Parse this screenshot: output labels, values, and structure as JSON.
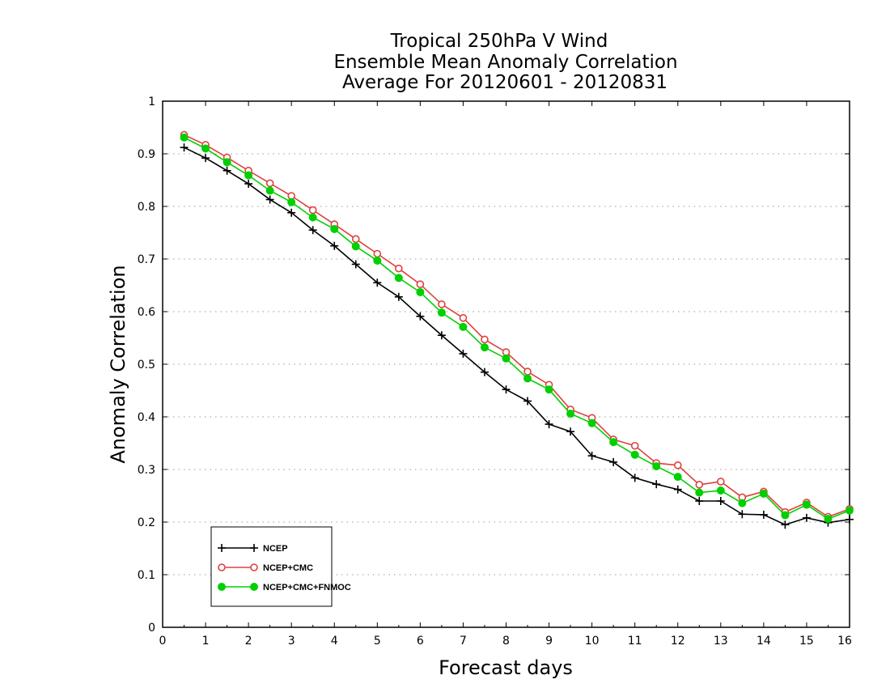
{
  "chart_data": {
    "type": "line",
    "title": [
      "Tropical 250hPa V Wind",
      "Ensemble Mean Anomaly Correlation",
      "Average For 20120601 - 20120831"
    ],
    "xlabel": "Forecast days",
    "ylabel": "Anomaly Correlation",
    "xlim": [
      0,
      16
    ],
    "ylim": [
      0,
      1
    ],
    "xticks": [
      "0",
      "1",
      "2",
      "3",
      "4",
      "5",
      "6",
      "7",
      "8",
      "9",
      "10",
      "11",
      "12",
      "13",
      "14",
      "15",
      "16"
    ],
    "yticks": [
      "0",
      "0.1",
      "0.2",
      "0.3",
      "0.4",
      "0.5",
      "0.6",
      "0.7",
      "0.8",
      "0.9",
      "1"
    ],
    "grid": "horizontal-dotted",
    "legend_position": "bottom-left",
    "x": [
      0.5,
      1,
      1.5,
      2,
      2.5,
      3,
      3.5,
      4,
      4.5,
      5,
      5.5,
      6,
      6.5,
      7,
      7.5,
      8,
      8.5,
      9,
      9.5,
      10,
      10.5,
      11,
      11.5,
      12,
      12.5,
      13,
      13.5,
      14,
      14.5,
      15,
      15.5,
      16
    ],
    "series": [
      {
        "name": "NCEP",
        "color": "#000000",
        "marker": "plus",
        "values": [
          0.912,
          0.892,
          0.868,
          0.843,
          0.813,
          0.788,
          0.755,
          0.725,
          0.69,
          0.655,
          0.628,
          0.591,
          0.555,
          0.52,
          0.485,
          0.452,
          0.43,
          0.386,
          0.372,
          0.326,
          0.314,
          0.284,
          0.272,
          0.262,
          0.24,
          0.24,
          0.215,
          0.214,
          0.195,
          0.208,
          0.199,
          0.205
        ]
      },
      {
        "name": "NCEP+CMC",
        "color": "#e04040",
        "marker": "open-circle",
        "values": [
          0.936,
          0.917,
          0.893,
          0.868,
          0.844,
          0.82,
          0.793,
          0.766,
          0.738,
          0.71,
          0.682,
          0.652,
          0.614,
          0.588,
          0.547,
          0.523,
          0.486,
          0.461,
          0.414,
          0.398,
          0.357,
          0.345,
          0.312,
          0.308,
          0.271,
          0.277,
          0.247,
          0.258,
          0.219,
          0.237,
          0.21,
          0.225
        ]
      },
      {
        "name": "NCEP+CMC+FNMOC",
        "color": "#00d000",
        "marker": "filled-circle",
        "values": [
          0.931,
          0.91,
          0.884,
          0.859,
          0.83,
          0.808,
          0.779,
          0.757,
          0.724,
          0.697,
          0.664,
          0.637,
          0.598,
          0.571,
          0.532,
          0.511,
          0.473,
          0.452,
          0.406,
          0.388,
          0.352,
          0.328,
          0.306,
          0.286,
          0.256,
          0.26,
          0.236,
          0.254,
          0.213,
          0.233,
          0.206,
          0.222
        ]
      }
    ]
  }
}
